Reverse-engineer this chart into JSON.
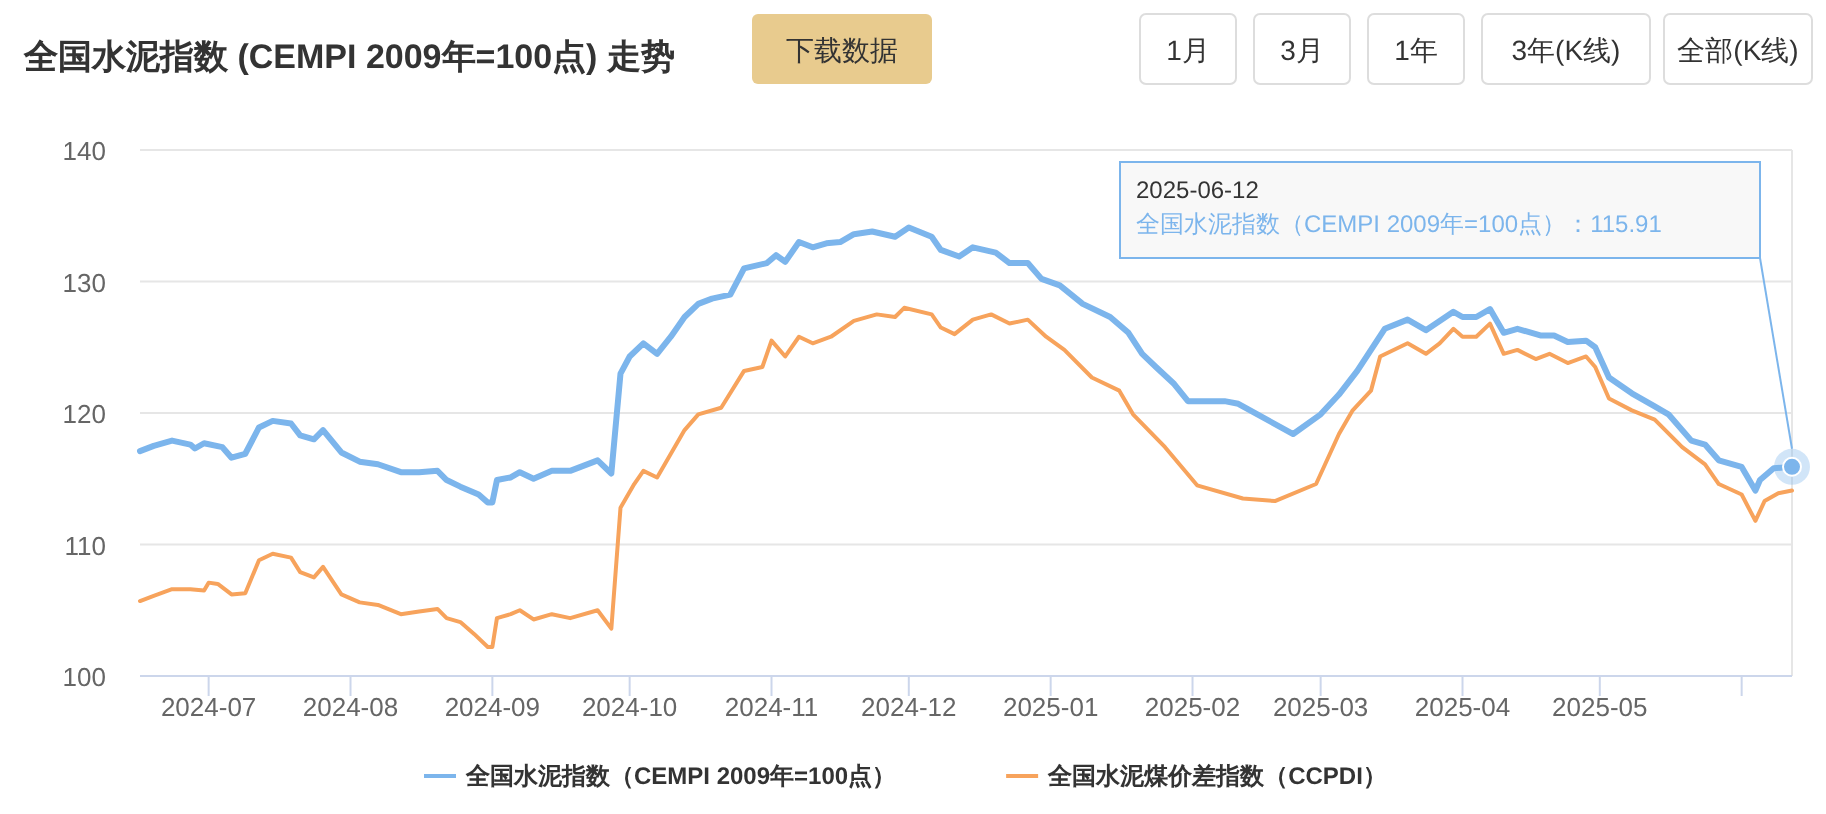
{
  "chart_data": {
    "type": "line",
    "title": "全国水泥指数 (CEMPI 2009年=100点) 走势",
    "annotations": [
      "下载数据",
      "1月",
      "3月",
      "1年",
      "3年(K线)",
      "全部(K线)",
      "2025-06-12\n全国水泥指数（CEMPI 2009年=100点）：115.91"
    ],
    "xlim": [
      "2024-06-16",
      "2025-06-12"
    ],
    "xticks": [
      "2024-07",
      "2024-08",
      "2024-09",
      "2024-10",
      "2024-11",
      "2024-12",
      "2025-01",
      "2025-02",
      "2025-03",
      "2025-04",
      "2025-05",
      {
        "value": "2025-06",
        "label": null
      }
    ],
    "ylim": [
      100,
      140
    ],
    "yticks": [
      100,
      110,
      120,
      130,
      140
    ],
    "grid": "y",
    "legend": "bottom",
    "marker": "none",
    "line_style": "solid",
    "series": [
      {
        "name": "全国水泥指数（CEMPI 2009年=100点）",
        "color": "#7cb5ec",
        "x": [
          "2024-06-16",
          "2024-06-19",
          "2024-06-23",
          "2024-06-27",
          "2024-06-28",
          "2024-06-30",
          "2024-07-04",
          "2024-07-06",
          "2024-07-09",
          "2024-07-12",
          "2024-07-15",
          "2024-07-19",
          "2024-07-21",
          "2024-07-24",
          "2024-07-26",
          "2024-07-30",
          "2024-08-03",
          "2024-08-07",
          "2024-08-12",
          "2024-08-16",
          "2024-08-20",
          "2024-08-22",
          "2024-08-25",
          "2024-08-29",
          "2024-08-31",
          "2024-09-01",
          "2024-09-02",
          "2024-09-05",
          "2024-09-07",
          "2024-09-10",
          "2024-09-14",
          "2024-09-18",
          "2024-09-24",
          "2024-09-27",
          "2024-09-29",
          "2024-10-01",
          "2024-10-04",
          "2024-10-07",
          "2024-10-10",
          "2024-10-13",
          "2024-10-16",
          "2024-10-19",
          "2024-10-23",
          "2024-10-26",
          "2024-10-31",
          "2024-11-02",
          "2024-11-04",
          "2024-11-07",
          "2024-11-10",
          "2024-11-13",
          "2024-11-16",
          "2024-11-19",
          "2024-11-23",
          "2024-11-28",
          "2024-12-01",
          "2024-12-06",
          "2024-12-08",
          "2024-12-12",
          "2024-12-15",
          "2024-12-20",
          "2024-12-23",
          "2024-12-27",
          "2024-12-30",
          "2025-01-03",
          "2025-01-08",
          "2025-01-14",
          "2025-01-18",
          "2025-01-21",
          "2025-01-24",
          "2025-01-28",
          "2025-01-31",
          "2025-02-08",
          "2025-02-11",
          "2025-02-12",
          "2025-02-23",
          "2025-03-01",
          "2025-03-05",
          "2025-03-09",
          "2025-03-12",
          "2025-03-15",
          "2025-03-20",
          "2025-03-24",
          "2025-03-27",
          "2025-03-30",
          "2025-04-01",
          "2025-04-04",
          "2025-04-07",
          "2025-04-10",
          "2025-04-13",
          "2025-04-18",
          "2025-04-21",
          "2025-04-24",
          "2025-04-28",
          "2025-04-30",
          "2025-05-03",
          "2025-05-08",
          "2025-05-13",
          "2025-05-16",
          "2025-05-21",
          "2025-05-24",
          "2025-05-27",
          "2025-06-01",
          "2025-06-04",
          "2025-06-05",
          "2025-06-08",
          "2025-06-12"
        ],
        "values": [
          117.1,
          117.5,
          117.9,
          117.6,
          117.3,
          117.7,
          117.4,
          116.6,
          116.9,
          118.9,
          119.4,
          119.2,
          118.3,
          118.0,
          118.7,
          117.0,
          116.3,
          116.1,
          115.5,
          115.5,
          115.6,
          114.9,
          114.4,
          113.8,
          113.2,
          113.2,
          114.9,
          115.1,
          115.5,
          115.0,
          115.6,
          115.6,
          116.4,
          115.4,
          123.0,
          124.3,
          125.3,
          124.5,
          125.8,
          127.3,
          128.3,
          128.7,
          129.0,
          131.0,
          131.4,
          132.0,
          131.5,
          133.0,
          132.6,
          132.9,
          133.0,
          133.6,
          133.8,
          133.4,
          134.1,
          133.4,
          132.4,
          131.9,
          132.6,
          132.2,
          131.4,
          131.4,
          130.2,
          129.7,
          128.3,
          127.3,
          126.1,
          124.5,
          123.5,
          122.2,
          120.9,
          120.9,
          120.7,
          120.5,
          118.4,
          119.9,
          121.4,
          123.2,
          124.8,
          126.4,
          127.1,
          126.3,
          127.0,
          127.7,
          127.3,
          127.3,
          127.9,
          126.1,
          126.4,
          125.9,
          125.9,
          125.4,
          125.5,
          125.0,
          122.7,
          121.5,
          120.5,
          119.9,
          117.9,
          117.6,
          116.4,
          115.9,
          114.1,
          114.9,
          115.8,
          115.91
        ]
      },
      {
        "name": "全国水泥煤价差指数（CCPDI）",
        "color": "#f7a35c",
        "x": [
          "2024-06-16",
          "2024-06-19",
          "2024-06-23",
          "2024-06-27",
          "2024-06-30",
          "2024-07-01",
          "2024-07-03",
          "2024-07-06",
          "2024-07-09",
          "2024-07-12",
          "2024-07-15",
          "2024-07-19",
          "2024-07-21",
          "2024-07-24",
          "2024-07-26",
          "2024-07-30",
          "2024-08-03",
          "2024-08-07",
          "2024-08-12",
          "2024-08-16",
          "2024-08-20",
          "2024-08-22",
          "2024-08-25",
          "2024-08-28",
          "2024-08-31",
          "2024-09-01",
          "2024-09-02",
          "2024-09-05",
          "2024-09-07",
          "2024-09-10",
          "2024-09-14",
          "2024-09-18",
          "2024-09-24",
          "2024-09-27",
          "2024-09-29",
          "2024-10-02",
          "2024-10-04",
          "2024-10-07",
          "2024-10-10",
          "2024-10-13",
          "2024-10-16",
          "2024-10-21",
          "2024-10-26",
          "2024-10-30",
          "2024-11-01",
          "2024-11-04",
          "2024-11-07",
          "2024-11-10",
          "2024-11-14",
          "2024-11-19",
          "2024-11-24",
          "2024-11-28",
          "2024-11-30",
          "2024-12-06",
          "2024-12-08",
          "2024-12-11",
          "2024-12-15",
          "2024-12-19",
          "2024-12-23",
          "2024-12-27",
          "2024-12-31",
          "2025-01-04",
          "2025-01-10",
          "2025-01-16",
          "2025-01-19",
          "2025-01-26",
          "2025-02-02",
          "2025-02-12",
          "2025-02-19",
          "2025-02-28",
          "2025-03-05",
          "2025-03-08",
          "2025-03-12",
          "2025-03-14",
          "2025-03-20",
          "2025-03-24",
          "2025-03-27",
          "2025-03-30",
          "2025-04-01",
          "2025-04-04",
          "2025-04-07",
          "2025-04-10",
          "2025-04-13",
          "2025-04-17",
          "2025-04-20",
          "2025-04-24",
          "2025-04-28",
          "2025-04-30",
          "2025-05-03",
          "2025-05-08",
          "2025-05-13",
          "2025-05-19",
          "2025-05-24",
          "2025-05-27",
          "2025-06-01",
          "2025-06-04",
          "2025-06-06",
          "2025-06-09",
          "2025-06-12"
        ],
        "values": [
          105.7,
          106.1,
          106.6,
          106.6,
          106.5,
          107.1,
          107.0,
          106.2,
          106.3,
          108.8,
          109.3,
          109.0,
          107.9,
          107.5,
          108.3,
          106.2,
          105.6,
          105.4,
          104.7,
          104.9,
          105.1,
          104.4,
          104.1,
          103.2,
          102.2,
          102.2,
          104.4,
          104.7,
          105.0,
          104.3,
          104.7,
          104.4,
          105.0,
          103.6,
          112.8,
          114.6,
          115.6,
          115.1,
          116.9,
          118.7,
          119.9,
          120.4,
          123.2,
          123.5,
          125.5,
          124.3,
          125.8,
          125.3,
          125.8,
          127.0,
          127.5,
          127.3,
          128.0,
          127.5,
          126.5,
          126.0,
          127.1,
          127.5,
          126.8,
          127.1,
          125.8,
          124.8,
          122.7,
          121.7,
          119.9,
          117.4,
          114.5,
          113.5,
          113.3,
          114.6,
          118.4,
          120.2,
          121.7,
          124.3,
          125.3,
          124.5,
          125.3,
          126.4,
          125.8,
          125.8,
          126.8,
          124.5,
          124.8,
          124.1,
          124.5,
          123.8,
          124.3,
          123.5,
          121.1,
          120.2,
          119.5,
          117.4,
          116.1,
          114.6,
          113.8,
          111.8,
          113.3,
          113.9,
          114.1
        ]
      }
    ]
  }
}
